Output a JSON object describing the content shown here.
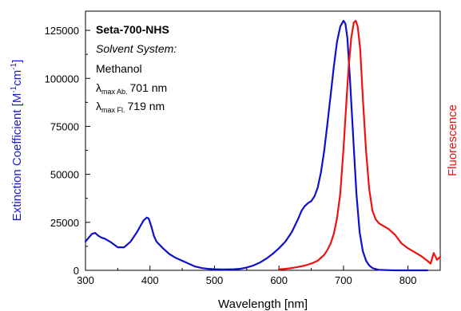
{
  "chart_data": {
    "type": "line",
    "title": "",
    "xlabel": "Wavelength [nm]",
    "ylabel": "Extinction Coefficient [M⁻¹cm⁻¹]",
    "ylabel_parts": {
      "main": "Extinction Coefficient [M",
      "sup1": "-1",
      "mid": "cm",
      "sup2": "-1",
      "end": "]"
    },
    "y2label": "Fluorescence",
    "xlim": [
      300,
      850
    ],
    "ylim": [
      0,
      135000
    ],
    "x_ticks": [
      300,
      400,
      500,
      600,
      700,
      800
    ],
    "y_ticks": [
      0,
      25000,
      50000,
      75000,
      100000,
      125000
    ],
    "x_tick_labels": [
      "300",
      "400",
      "500",
      "600",
      "700",
      "800"
    ],
    "y_tick_labels": [
      "0",
      "25000",
      "50000",
      "75000",
      "100000",
      "125000"
    ],
    "grid": false,
    "colors": {
      "absorbance": "#1010cc",
      "fluorescence": "#ee1111"
    },
    "annotations": {
      "compound": "Seta-700-NHS",
      "solvent_label": "Solvent System:",
      "solvent": "Methanol",
      "lambda": "λ",
      "abs_sub": "max Ab.",
      "abs_value": "701 nm",
      "fl_sub": "max Fl.",
      "fl_value": "719 nm"
    },
    "series": [
      {
        "key": "absorbance",
        "axis": "left",
        "x": [
          300,
          305,
          310,
          315,
          320,
          325,
          330,
          340,
          350,
          360,
          370,
          380,
          385,
          390,
          395,
          398,
          402,
          406,
          410,
          420,
          430,
          440,
          450,
          460,
          470,
          480,
          490,
          500,
          510,
          520,
          530,
          540,
          550,
          560,
          570,
          580,
          590,
          600,
          610,
          620,
          630,
          635,
          640,
          645,
          650,
          655,
          660,
          665,
          670,
          675,
          680,
          685,
          690,
          695,
          700,
          703,
          706,
          710,
          715,
          720,
          725,
          730,
          735,
          740,
          745,
          750,
          755,
          760,
          770,
          780,
          800,
          820,
          830
        ],
        "y": [
          15000,
          17000,
          19000,
          19500,
          18000,
          17000,
          16500,
          14500,
          12000,
          12000,
          15000,
          20000,
          23000,
          26000,
          27500,
          27000,
          23000,
          18000,
          15000,
          11500,
          8500,
          6500,
          5000,
          3500,
          2000,
          1200,
          800,
          600,
          500,
          500,
          600,
          800,
          1500,
          2500,
          4000,
          6000,
          8500,
          11500,
          15000,
          20000,
          27000,
          31000,
          33500,
          35000,
          36000,
          38500,
          43000,
          51000,
          62000,
          76000,
          91000,
          106000,
          119000,
          127000,
          130000,
          128500,
          121000,
          100000,
          70000,
          40000,
          20000,
          10000,
          5000,
          2500,
          1200,
          600,
          300,
          200,
          100,
          0,
          0,
          0,
          0
        ]
      },
      {
        "key": "fluorescence",
        "axis": "right",
        "x": [
          600,
          610,
          620,
          630,
          640,
          650,
          660,
          670,
          675,
          680,
          685,
          690,
          695,
          700,
          705,
          708,
          712,
          716,
          719,
          722,
          726,
          730,
          735,
          740,
          745,
          750,
          755,
          760,
          765,
          770,
          780,
          790,
          800,
          810,
          820,
          830,
          835,
          840,
          845,
          850
        ],
        "y": [
          500,
          800,
          1200,
          1800,
          2500,
          3500,
          5000,
          8000,
          10500,
          14000,
          19000,
          27000,
          40000,
          63000,
          90000,
          106000,
          121000,
          129000,
          130000,
          127000,
          115000,
          90000,
          62000,
          42000,
          31000,
          26500,
          24500,
          23500,
          22500,
          21500,
          18500,
          14000,
          11500,
          9500,
          7500,
          5000,
          3500,
          9000,
          5500,
          7000
        ]
      }
    ]
  }
}
